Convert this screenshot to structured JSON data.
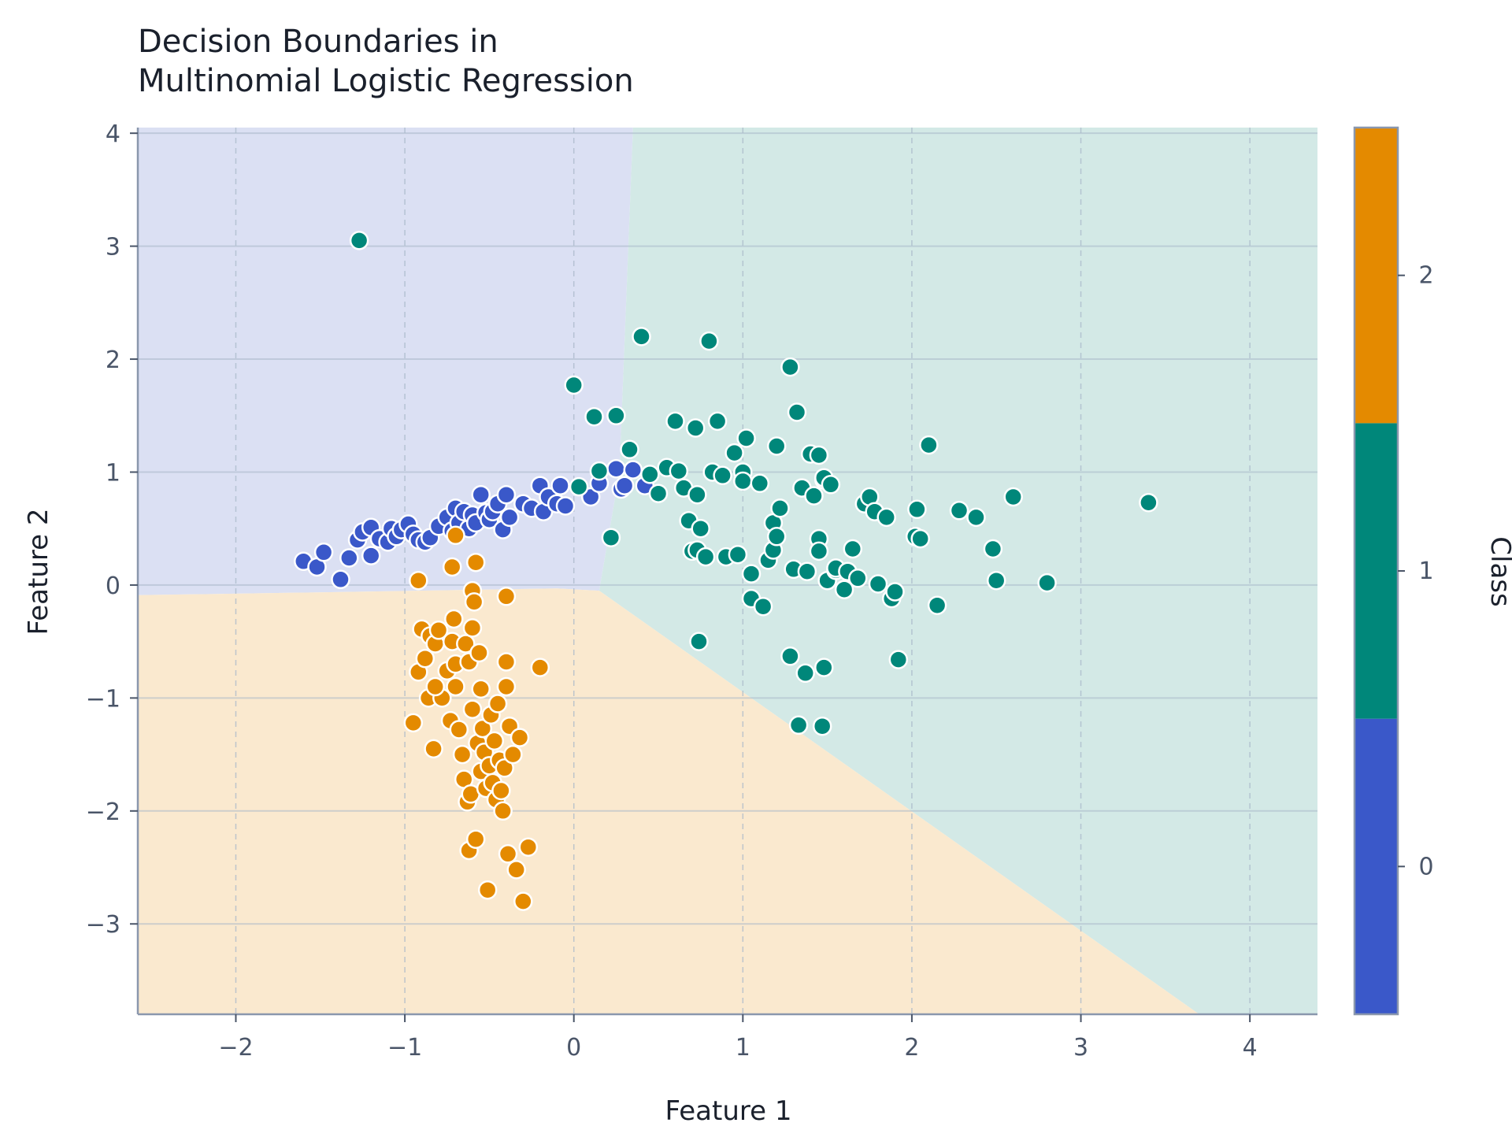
{
  "chart_data": {
    "type": "scatter",
    "title_lines": [
      "Decision Boundaries in",
      "Multinomial Logistic Regression"
    ],
    "xlabel": "Feature 1",
    "ylabel": "Feature 2",
    "xlim": [
      -2.58,
      4.4
    ],
    "ylim": [
      -3.8,
      4.05
    ],
    "x_ticks": [
      -2,
      -1,
      0,
      1,
      2,
      3,
      4
    ],
    "x_tick_labels": [
      "−2",
      "−1",
      "0",
      "1",
      "2",
      "3",
      "4"
    ],
    "y_ticks": [
      4,
      3,
      2,
      1,
      0,
      -1,
      -2,
      -3
    ],
    "y_tick_labels": [
      "4",
      "3",
      "2",
      "1",
      "0",
      "−1",
      "−2",
      "−3"
    ],
    "grid": "dashed",
    "regions": [
      {
        "class": 0,
        "color": "#dbe0f3",
        "polygon": [
          [
            -2.58,
            4.05
          ],
          [
            0.35,
            4.05
          ],
          [
            0.27,
            1.0
          ],
          [
            0.15,
            -0.05
          ],
          [
            -0.1,
            -0.03
          ],
          [
            -1.3,
            -0.06
          ],
          [
            -2.58,
            -0.09
          ]
        ]
      },
      {
        "class": 1,
        "color": "#d3e9e6",
        "polygon": [
          [
            0.35,
            4.05
          ],
          [
            4.4,
            4.05
          ],
          [
            4.4,
            -3.8
          ],
          [
            3.7,
            -3.8
          ],
          [
            0.15,
            -0.05
          ],
          [
            0.27,
            1.0
          ]
        ]
      },
      {
        "class": 2,
        "color": "#fae9cf",
        "polygon": [
          [
            -2.58,
            -0.09
          ],
          [
            -1.3,
            -0.06
          ],
          [
            -0.1,
            -0.03
          ],
          [
            0.15,
            -0.05
          ],
          [
            3.7,
            -3.8
          ],
          [
            -2.58,
            -3.8
          ]
        ]
      }
    ],
    "colorbar": {
      "label": "Class",
      "ticks": [
        0,
        1,
        2
      ],
      "tick_labels": [
        "0",
        "1",
        "2"
      ],
      "colors": [
        "#3a58c9",
        "#00877a",
        "#e48a00"
      ]
    },
    "series": [
      {
        "class": 0,
        "color": "#3a58c9",
        "x": [
          -1.6,
          -1.52,
          -1.48,
          -1.38,
          -1.33,
          -1.28,
          -1.25,
          -1.2,
          -1.2,
          -1.15,
          -1.1,
          -1.08,
          -1.05,
          -1.02,
          -0.98,
          -0.95,
          -0.92,
          -0.88,
          -0.85,
          -0.8,
          -0.75,
          -0.72,
          -0.7,
          -0.68,
          -0.65,
          -0.62,
          -0.6,
          -0.58,
          -0.55,
          -0.52,
          -0.5,
          -0.48,
          -0.45,
          -0.42,
          -0.4,
          -0.38,
          -0.3,
          -0.25,
          -0.2,
          -0.18,
          -0.15,
          -0.1,
          -0.08,
          -0.05,
          0.1,
          0.15,
          0.25,
          0.28,
          0.3,
          0.35,
          0.42
        ],
        "y": [
          0.21,
          0.16,
          0.29,
          0.05,
          0.24,
          0.4,
          0.47,
          0.51,
          0.26,
          0.41,
          0.38,
          0.5,
          0.43,
          0.49,
          0.54,
          0.45,
          0.4,
          0.38,
          0.42,
          0.52,
          0.6,
          0.48,
          0.68,
          0.55,
          0.65,
          0.5,
          0.62,
          0.55,
          0.8,
          0.64,
          0.58,
          0.65,
          0.72,
          0.49,
          0.8,
          0.6,
          0.72,
          0.68,
          0.88,
          0.65,
          0.78,
          0.72,
          0.88,
          0.7,
          0.78,
          0.9,
          1.03,
          0.85,
          0.88,
          1.02,
          0.88
        ]
      },
      {
        "class": 1,
        "color": "#00877a",
        "x": [
          -1.27,
          0.0,
          0.03,
          0.12,
          0.15,
          0.22,
          0.25,
          0.33,
          0.4,
          0.45,
          0.5,
          0.55,
          0.6,
          0.62,
          0.65,
          0.68,
          0.7,
          0.72,
          0.73,
          0.73,
          0.75,
          0.78,
          0.8,
          0.82,
          0.85,
          0.88,
          0.9,
          0.95,
          0.97,
          1.0,
          1.0,
          1.02,
          1.05,
          1.05,
          1.1,
          1.12,
          1.15,
          1.18,
          1.18,
          1.2,
          1.2,
          1.22,
          1.28,
          1.3,
          1.32,
          1.35,
          1.38,
          1.4,
          1.42,
          1.45,
          1.45,
          1.45,
          1.48,
          1.48,
          1.5,
          1.52,
          1.55,
          1.55,
          1.6,
          1.62,
          1.65,
          1.68,
          1.72,
          1.75,
          1.78,
          1.8,
          1.85,
          1.88,
          1.9,
          1.92,
          2.02,
          2.03,
          2.05,
          2.1,
          2.15,
          2.28,
          2.38,
          2.48,
          2.5,
          2.6,
          2.8,
          3.4,
          1.33,
          1.47,
          1.28,
          1.37,
          1.48,
          0.74
        ],
        "y": [
          3.05,
          1.77,
          0.87,
          1.49,
          1.01,
          0.42,
          1.5,
          1.2,
          2.2,
          0.98,
          0.81,
          1.04,
          1.45,
          1.01,
          0.86,
          0.57,
          0.3,
          1.39,
          0.8,
          0.31,
          0.5,
          0.25,
          2.16,
          1.0,
          1.45,
          0.97,
          0.25,
          1.17,
          0.27,
          1.0,
          0.92,
          1.3,
          0.1,
          -0.12,
          0.9,
          -0.19,
          0.22,
          0.55,
          0.31,
          1.23,
          0.43,
          0.68,
          1.93,
          0.14,
          1.53,
          0.86,
          0.12,
          1.16,
          0.79,
          0.41,
          0.3,
          1.15,
          0.93,
          0.95,
          0.04,
          0.89,
          0.13,
          0.15,
          -0.04,
          0.12,
          0.32,
          0.06,
          0.72,
          0.78,
          0.65,
          0.01,
          0.6,
          -0.12,
          -0.06,
          -0.66,
          0.43,
          0.67,
          0.41,
          1.24,
          -0.18,
          0.66,
          0.6,
          0.32,
          0.04,
          0.78,
          0.02,
          0.73,
          -1.24,
          -1.25,
          -0.63,
          -0.78,
          -0.73,
          -0.5
        ]
      },
      {
        "class": 2,
        "color": "#e48a00",
        "x": [
          -0.95,
          -0.92,
          -0.9,
          -0.88,
          -0.86,
          -0.85,
          -0.83,
          -0.82,
          -0.8,
          -0.78,
          -0.75,
          -0.73,
          -0.72,
          -0.71,
          -0.7,
          -0.7,
          -0.68,
          -0.66,
          -0.65,
          -0.64,
          -0.63,
          -0.62,
          -0.62,
          -0.61,
          -0.6,
          -0.6,
          -0.59,
          -0.58,
          -0.57,
          -0.56,
          -0.55,
          -0.55,
          -0.54,
          -0.53,
          -0.52,
          -0.51,
          -0.5,
          -0.49,
          -0.48,
          -0.47,
          -0.46,
          -0.45,
          -0.44,
          -0.43,
          -0.42,
          -0.41,
          -0.4,
          -0.4,
          -0.39,
          -0.38,
          -0.36,
          -0.34,
          -0.32,
          -0.3,
          -0.27,
          -0.2,
          -0.92,
          -0.7,
          -0.58,
          -0.72,
          -0.6,
          -0.4,
          -0.82
        ],
        "y": [
          -1.22,
          -0.77,
          -0.39,
          -0.65,
          -1.0,
          -0.45,
          -1.45,
          -0.52,
          -0.4,
          -1.0,
          -0.76,
          -1.2,
          -0.5,
          -0.3,
          -0.7,
          -0.9,
          -1.28,
          -1.5,
          -1.72,
          -0.52,
          -1.92,
          -0.68,
          -2.35,
          -1.85,
          -1.1,
          -0.05,
          -0.15,
          -2.25,
          -1.4,
          -0.6,
          -1.65,
          -0.92,
          -1.27,
          -1.48,
          -1.8,
          -2.7,
          -1.6,
          -1.15,
          -1.75,
          -1.38,
          -1.9,
          -1.05,
          -1.55,
          -1.82,
          -2.0,
          -1.62,
          -0.68,
          -0.9,
          -2.38,
          -1.25,
          -1.5,
          -2.52,
          -1.35,
          -2.8,
          -2.32,
          -0.73,
          0.04,
          0.44,
          0.2,
          0.16,
          -0.38,
          -0.1,
          -0.9
        ]
      }
    ]
  }
}
